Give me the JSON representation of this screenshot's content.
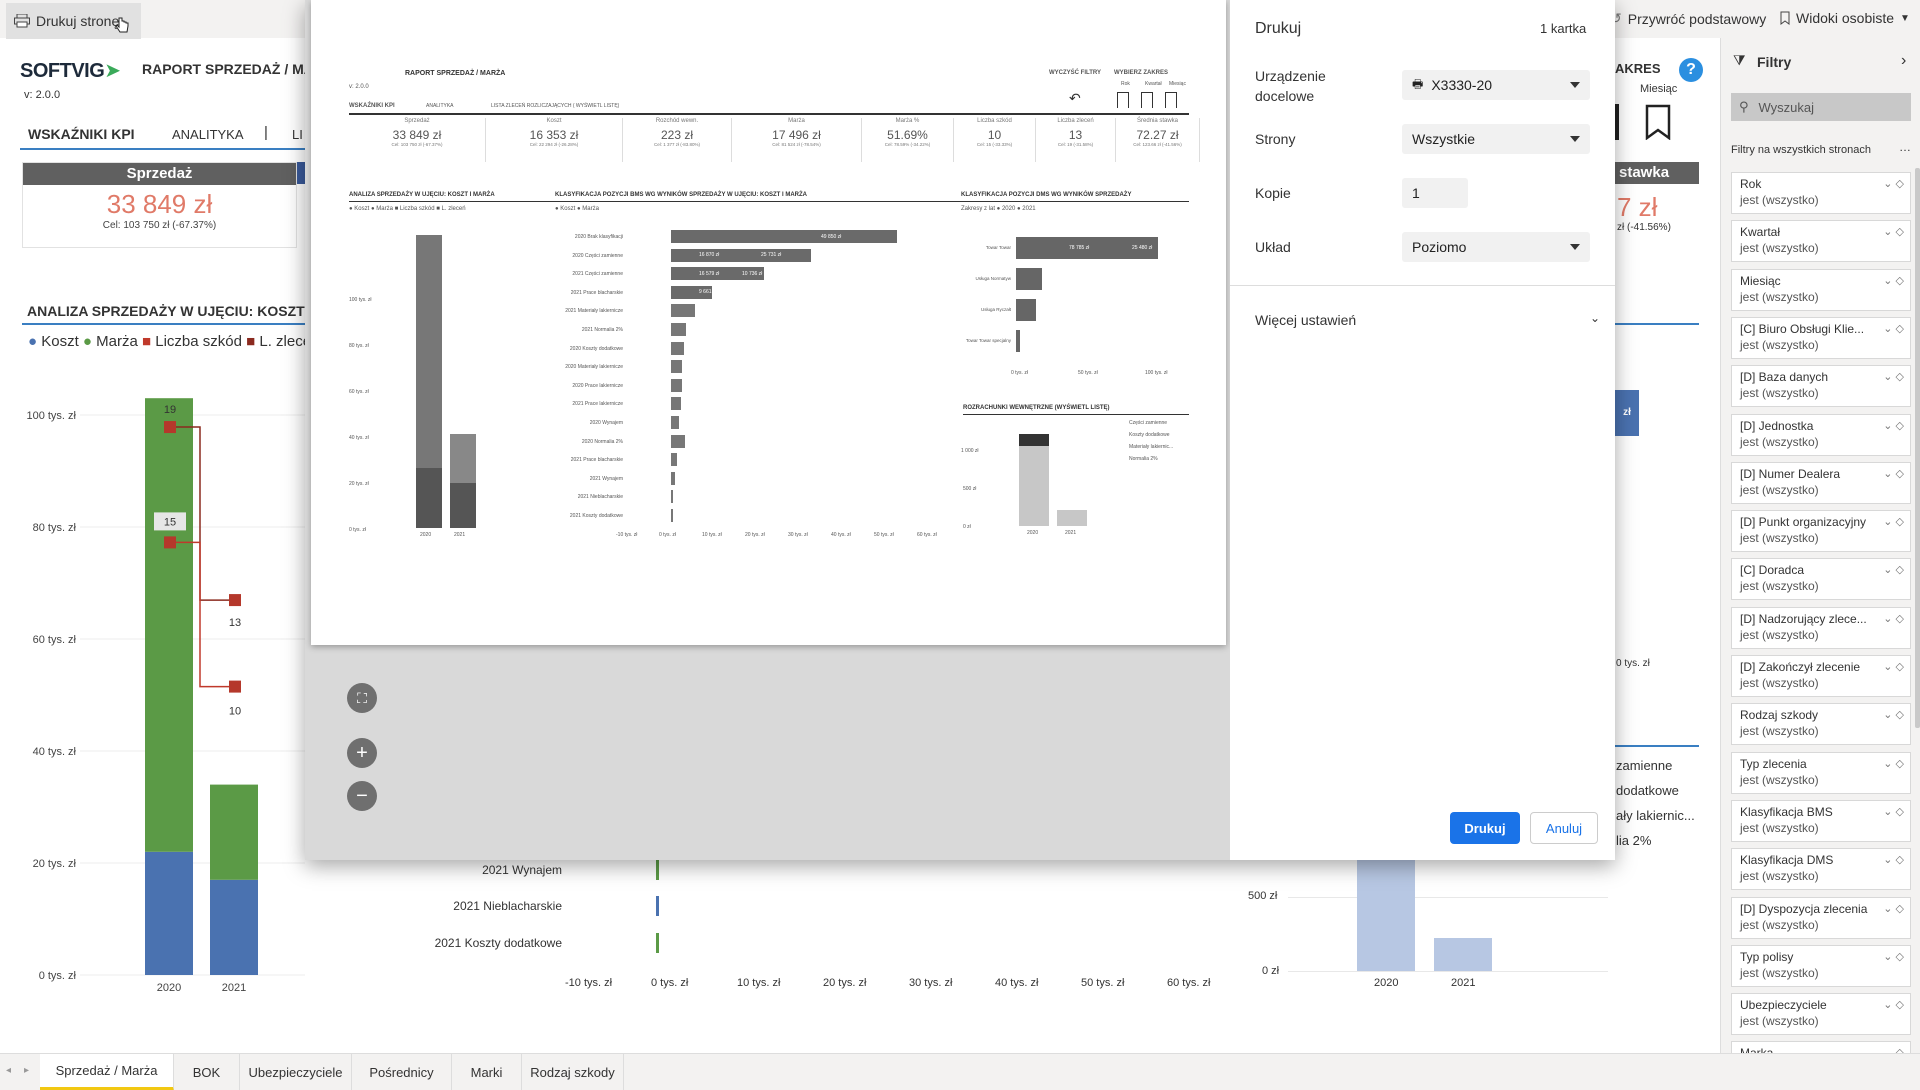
{
  "toolbar": {
    "print_page": "Drukuj stronę",
    "reset": "Przywróć podstawowy",
    "personal_views": "Widoki osobiste"
  },
  "report": {
    "brand": "SOFTVIG",
    "version": "v: 2.0.0",
    "title_partial": "RAPORT SPRZEDAŻ / MA",
    "tab_kpi": "WSKAŹNIKI KPI",
    "tab_analytics": "ANALITYKA",
    "tab_more": "LI",
    "sales_card_title": "Sprzedaż",
    "sales_value": "33 849 zł",
    "sales_target": "Cel: 103 750 zł (-67.37%)",
    "chart_title_partial": "ANALIZA SPRZEDAŻY W UJĘCIU: KOSZT I MAR",
    "legend": [
      "Koszt",
      "Marża",
      "Liczba szkód",
      "L. zlecen"
    ],
    "right_partial": {
      "akres": "AKRES",
      "miesiac": "Miesiąc",
      "stawka": "stawka",
      "value": "7 zł",
      "pct": "zł (-41.56%)",
      "tys": "0 tys. zł",
      "zl_label": "zł",
      "legend": [
        "zamienne",
        "dodatkowe",
        "ały lakiernic...",
        "lia 2%"
      ]
    }
  },
  "chart_data": [
    {
      "type": "bar",
      "stacked": true,
      "categories": [
        "2020",
        "2021"
      ],
      "series": [
        {
          "name": "Koszt",
          "values": [
            22,
            17
          ]
        },
        {
          "name": "Marża",
          "values": [
            81,
            17
          ]
        }
      ],
      "line_series": [
        {
          "name": "Liczba szkód",
          "values": [
            19,
            13
          ]
        },
        {
          "name": "L. zlecen",
          "values": [
            15,
            10
          ]
        }
      ],
      "yticks": [
        "0 tys. zł",
        "20 tys. zł",
        "40 tys. zł",
        "60 tys. zł",
        "80 tys. zł",
        "100 tys. zł"
      ],
      "ylim": [
        0,
        105
      ],
      "secondary_ytick": "0",
      "data_labels": [
        "19",
        "15",
        "13",
        "10"
      ]
    },
    {
      "type": "bar",
      "orientation": "horizontal",
      "categories": [
        "2021 Wynajem",
        "2021 Nieblacharskie",
        "2021 Koszty dodatkowe"
      ],
      "xticks": [
        "-10 tys. zł",
        "0 tys. zł",
        "10 tys. zł",
        "20 tys. zł",
        "30 tys. zł",
        "40 tys. zł",
        "50 tys. zł",
        "60 tys. zł"
      ]
    },
    {
      "type": "bar",
      "categories": [
        "2020",
        "2021"
      ],
      "yticks": [
        "0 zł",
        "500 zł"
      ]
    }
  ],
  "filters": {
    "title": "Filtry",
    "search_placeholder": "Wyszukaj",
    "section": "Filtry na wszystkich stronach",
    "items": [
      {
        "name": "Rok",
        "value": "jest (wszystko)"
      },
      {
        "name": "Kwartał",
        "value": "jest (wszystko)"
      },
      {
        "name": "Miesiąc",
        "value": "jest (wszystko)"
      },
      {
        "name": "[C] Biuro Obsługi Klie...",
        "value": "jest (wszystko)"
      },
      {
        "name": "[D] Baza danych",
        "value": "jest (wszystko)"
      },
      {
        "name": "[D] Jednostka",
        "value": "jest (wszystko)"
      },
      {
        "name": "[D] Numer Dealera",
        "value": "jest (wszystko)"
      },
      {
        "name": "[D] Punkt organizacyjny",
        "value": "jest (wszystko)"
      },
      {
        "name": "[C] Doradca",
        "value": "jest (wszystko)"
      },
      {
        "name": "[D] Nadzorujący zlece...",
        "value": "jest (wszystko)"
      },
      {
        "name": "[D] Zakończył zlecenie",
        "value": "jest (wszystko)"
      },
      {
        "name": "Rodzaj szkody",
        "value": "jest (wszystko)"
      },
      {
        "name": "Typ zlecenia",
        "value": "jest (wszystko)"
      },
      {
        "name": "Klasyfikacja BMS",
        "value": "jest (wszystko)"
      },
      {
        "name": "Klasyfikacja DMS",
        "value": "jest (wszystko)"
      },
      {
        "name": "[D] Dyspozycja zlecenia",
        "value": "jest (wszystko)"
      },
      {
        "name": "Typ polisy",
        "value": "jest (wszystko)"
      },
      {
        "name": "Ubezpieczyciele",
        "value": "jest (wszystko)"
      },
      {
        "name": "Marka",
        "value": ""
      }
    ]
  },
  "bottom_tabs": [
    "Sprzedaż / Marża",
    "BOK",
    "Ubezpieczyciele",
    "Pośrednicy",
    "Marki",
    "Rodzaj szkody"
  ],
  "print_dialog": {
    "title": "Drukuj",
    "sheet_count": "1 kartka",
    "device_label": "Urządzenie docelowe",
    "device_value": "X3330-20",
    "pages_label": "Strony",
    "pages_value": "Wszystkie",
    "copies_label": "Kopie",
    "copies_value": "1",
    "layout_label": "Układ",
    "layout_value": "Poziomo",
    "more_settings": "Więcej ustawień",
    "print_button": "Drukuj",
    "cancel_button": "Anuluj"
  },
  "preview": {
    "title": "RAPORT SPRZEDAŻ / MARŻA",
    "version": "v: 2.0.0",
    "clear_filters": "WYCZYŚĆ FILTRY",
    "choose_range": "WYBIERZ ZAKRES",
    "range_opts": [
      "Rok",
      "Kwartał",
      "Miesiąc"
    ],
    "tabs": [
      "WSKAŹNIKI KPI",
      "ANALITYKA",
      "LISTA ZLECEŃ ROZLICZAJĄCYCH ( WYŚWIETL LISTĘ)"
    ],
    "kpis": [
      {
        "label": "Sprzedaż",
        "value": "33 849 zł",
        "target": "Cel: 103 750 zł (-67.37%)"
      },
      {
        "label": "Koszt",
        "value": "16 353 zł",
        "target": "Cel: 22 294 zł (-26.28%)"
      },
      {
        "label": "Rozchód wewn.",
        "value": "223 zł",
        "target": "Cel: 1 377 zł (-83.80%)"
      },
      {
        "label": "Marża",
        "value": "17 496 zł",
        "target": "Cel: 81 524 zł (-78.54%)"
      },
      {
        "label": "Marża %",
        "value": "51.69%",
        "target": "Cel: 78.59% (-34.22%)"
      },
      {
        "label": "Liczba szkód",
        "value": "10",
        "target": "Cel: 15 (-33.33%)"
      },
      {
        "label": "Liczba zleceń",
        "value": "13",
        "target": "Cel: 19 (-31.58%)"
      },
      {
        "label": "Średnia stawka",
        "value": "72.27 zł",
        "target": "Cel: 123.66 zł (-41.56%)"
      }
    ],
    "section1": "ANALIZA SPRZEDAŻY W UJĘCIU: KOSZT I MARŻA",
    "section2": "KLASYFIKACJA POZYCJI BMS WG WYNIKÓW SPRZEDAŻY W UJĘCIU: KOSZT I MARŻA",
    "section3": "KLASYFIKACJA POZYCJI DMS WG WYNIKÓW SPRZEDAŻY",
    "section4": "ROZRACHUNKI WEWNĘTRZNE (WYŚWIETL LISTĘ)",
    "legend1": "● Koszt  ● Marża  ■ Liczba szkód  ■ L. zleceń",
    "legend2": "● Koszt  ● Marża",
    "legend3": "Zakresy z lat  ● 2020  ● 2021",
    "bms_rows": [
      "2020 Brak klasyfikacji",
      "2020 Części zamienne",
      "2021 Części zamienne",
      "2021 Prace blacharskie",
      "2021 Materiały lakiernicze",
      "2021 Normalia 2%",
      "2020 Koszty dodatkowe",
      "2020 Materiały lakiernicze",
      "2020 Prace lakiernicze",
      "2021 Prace lakiernicze",
      "2020 Wynajem",
      "2020 Normalia 2%",
      "2021 Prace blacharskie",
      "2021 Wynajem",
      "2021 Nieblacharskie",
      "2021 Koszty dodatkowe"
    ],
    "bms_labels": [
      "49 850 zł",
      "16 870 zł",
      "25 731 zł",
      "16 579 zł",
      "10 736 zł",
      "9 661 zł"
    ],
    "dms_rows": [
      "Towar Towar",
      "Usługa Normatyw",
      "Usługa Ryczałt",
      "Towar Towar specjalny"
    ],
    "dms_labels": [
      "78 785 zł",
      "25 480 zł"
    ],
    "dms_ticks": [
      "0 tys. zł",
      "50 tys. zł",
      "100 tys. zł"
    ],
    "rozr_legend": [
      "Części zamienne",
      "Koszty dodatkowe",
      "Materiały lakiernic...",
      "Normalia 2%"
    ],
    "rozr_ticks": [
      "0 zł",
      "500 zł",
      "1 000 zł"
    ],
    "years": [
      "2020",
      "2021"
    ],
    "y1_ticks": [
      "0 tys. zł",
      "20 tys. zł",
      "40 tys. zł",
      "60 tys. zł",
      "80 tys. zł",
      "100 tys. zł"
    ],
    "bms_ticks": [
      "-10 tys. zł",
      "0 tys. zł",
      "10 tys. zł",
      "20 tys. zł",
      "30 tys. zł",
      "40 tys. zł",
      "50 tys. zł",
      "60 tys. zł"
    ]
  },
  "colors": {
    "koszt": "#4a72b0",
    "marza": "#5b9a46",
    "liczba_szkod": "#c0392b",
    "l_zlecen": "#8b2a1f",
    "accent": "#1a73e8",
    "tab_active": "#f2c811"
  }
}
